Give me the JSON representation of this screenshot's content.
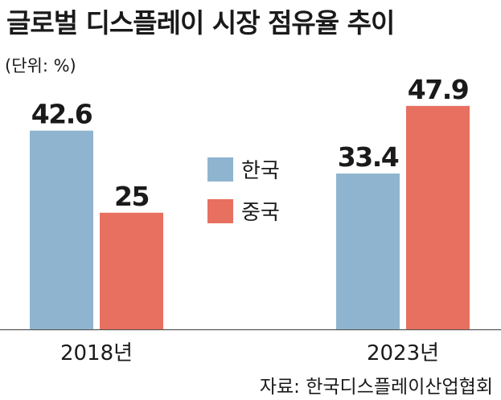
{
  "title": "글로벌 디스플레이 시장 점유율 추이",
  "unit_note": "(단위: %)",
  "source": "자료: 한국디스플레이산업협회",
  "chart_data": {
    "type": "bar",
    "title": "글로벌 디스플레이 시장 점유율 추이",
    "categories": [
      "2018년",
      "2023년"
    ],
    "series": [
      {
        "name": "한국",
        "values": [
          42.6,
          33.4
        ],
        "color": "#8fb4cf"
      },
      {
        "name": "중국",
        "values": [
          25,
          47.9
        ],
        "color": "#e87060"
      }
    ],
    "xlabel": "",
    "ylabel": "",
    "ylim": [
      0,
      62
    ],
    "grid": false,
    "legend_position": "center"
  }
}
